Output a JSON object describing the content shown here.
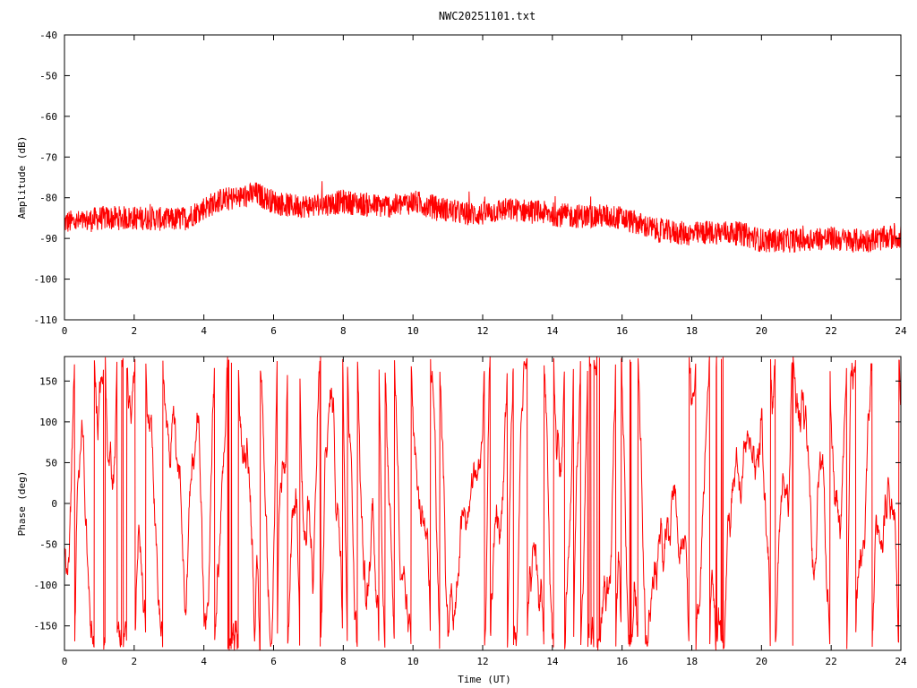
{
  "chart_data": [
    {
      "type": "line",
      "title": "NWC20251101.txt",
      "xlabel": "",
      "ylabel": "Amplitude (dB)",
      "xlim": [
        0,
        24
      ],
      "ylim": [
        -110,
        -40
      ],
      "xticks": [
        "0",
        "2",
        "4",
        "6",
        "8",
        "10",
        "12",
        "14",
        "16",
        "18",
        "20",
        "22",
        "24"
      ],
      "yticks": [
        "-40",
        "-50",
        "-60",
        "-70",
        "-80",
        "-90",
        "-100",
        "-110"
      ],
      "grid": false,
      "legend": "none",
      "series": [
        {
          "color": "#ff0000",
          "x": [
            0,
            0.5,
            1,
            1.5,
            2,
            2.5,
            3,
            3.5,
            4,
            4.5,
            5,
            5.5,
            6,
            6.5,
            7,
            7.5,
            8,
            8.5,
            9,
            9.5,
            10,
            10.5,
            11,
            11.5,
            12,
            12.5,
            13,
            13.5,
            14,
            14.5,
            15,
            15.5,
            16,
            16.5,
            17,
            17.5,
            18,
            18.5,
            19,
            19.5,
            20,
            20.5,
            21,
            21.5,
            22,
            22.5,
            23,
            23.5,
            24
          ],
          "values": [
            -86,
            -86,
            -85,
            -85,
            -85,
            -85,
            -85.5,
            -85,
            -82.5,
            -80.5,
            -80,
            -79,
            -81,
            -82,
            -82,
            -81.5,
            -81,
            -81.5,
            -82,
            -82,
            -81,
            -82,
            -83,
            -84,
            -84,
            -83,
            -83,
            -83.5,
            -84,
            -84.5,
            -84.5,
            -84.5,
            -85,
            -86.5,
            -88,
            -88.5,
            -89,
            -88.5,
            -88.5,
            -89,
            -90.5,
            -90.5,
            -90.5,
            -90,
            -90,
            -90.5,
            -90.5,
            -90,
            -89.5
          ],
          "noise_band_db": 3
        }
      ]
    },
    {
      "type": "line",
      "title": "",
      "xlabel": "Time (UT)",
      "ylabel": "Phase (deg)",
      "xlim": [
        0,
        24
      ],
      "ylim": [
        -180,
        180
      ],
      "xticks": [
        "0",
        "2",
        "4",
        "6",
        "8",
        "10",
        "12",
        "14",
        "16",
        "18",
        "20",
        "22",
        "24"
      ],
      "yticks": [
        "150",
        "100",
        "50",
        "0",
        "-50",
        "-100",
        "-150"
      ],
      "grid": false,
      "legend": "none",
      "series": [
        {
          "color": "#ff0000",
          "range": [
            -180,
            180
          ],
          "description": "rapidly wrapping phase"
        }
      ]
    }
  ]
}
